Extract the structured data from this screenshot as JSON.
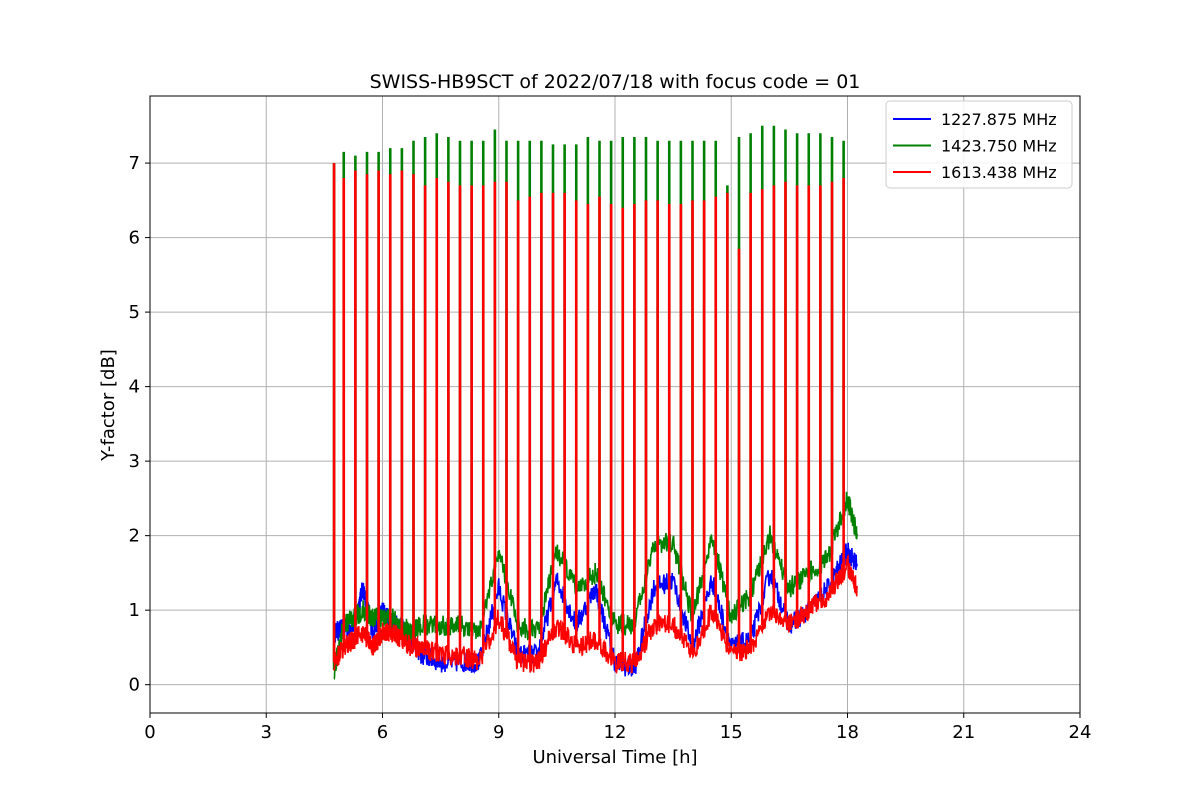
{
  "chart_data": {
    "type": "line",
    "title": "SWISS-HB9SCT of 2022/07/18 with focus code = 01",
    "xlabel": "Universal Time [h]",
    "ylabel": "Y-factor [dB]",
    "xlim": [
      0,
      24
    ],
    "ylim": [
      -0.38,
      7.9
    ],
    "xticks": [
      0,
      3,
      6,
      9,
      12,
      15,
      18,
      21,
      24
    ],
    "yticks": [
      0,
      1,
      2,
      3,
      4,
      5,
      6,
      7
    ],
    "grid": true,
    "legend_position": "top-right",
    "series": [
      {
        "name": "1227.875 MHz",
        "color": "#0000ff",
        "x": [
          4.75,
          5.0,
          5.25,
          5.5,
          5.75,
          6.0,
          6.25,
          6.5,
          6.75,
          7.0,
          7.5,
          8.0,
          8.5,
          9.0,
          9.5,
          10.0,
          10.5,
          11.0,
          11.5,
          12.0,
          12.5,
          13.0,
          13.5,
          14.0,
          14.5,
          15.0,
          15.5,
          16.0,
          16.5,
          17.0,
          17.5,
          18.0,
          18.25
        ],
        "y": [
          0.7,
          0.75,
          0.8,
          1.3,
          0.7,
          1.0,
          0.8,
          0.8,
          0.6,
          0.4,
          0.3,
          0.3,
          0.3,
          1.3,
          0.4,
          0.4,
          1.4,
          0.8,
          1.3,
          0.3,
          0.2,
          1.3,
          1.4,
          0.5,
          1.4,
          0.5,
          0.6,
          1.5,
          0.8,
          1.0,
          1.3,
          1.8,
          1.6
        ]
      },
      {
        "name": "1423.750 MHz",
        "color": "#008000",
        "x": [
          4.75,
          5.0,
          5.25,
          5.5,
          5.75,
          6.0,
          6.25,
          6.5,
          6.75,
          7.0,
          7.5,
          8.0,
          8.5,
          9.0,
          9.5,
          10.0,
          10.5,
          11.0,
          11.5,
          12.0,
          12.5,
          13.0,
          13.5,
          14.0,
          14.5,
          15.0,
          15.5,
          16.0,
          16.5,
          17.0,
          17.5,
          18.0,
          18.25
        ],
        "y": [
          0.2,
          0.8,
          0.9,
          1.0,
          0.9,
          0.9,
          0.9,
          0.8,
          0.7,
          0.8,
          0.8,
          0.8,
          0.7,
          1.8,
          0.8,
          0.7,
          1.8,
          1.3,
          1.5,
          0.8,
          0.8,
          1.9,
          1.9,
          0.9,
          2.0,
          0.9,
          1.2,
          2.0,
          1.3,
          1.5,
          1.7,
          2.5,
          2.0
        ],
        "peaks_x": [
          4.75,
          5.0,
          5.3,
          5.6,
          5.9,
          6.2,
          6.5,
          6.8,
          7.1,
          7.4,
          7.7,
          8.0,
          8.3,
          8.6,
          8.9,
          9.2,
          9.5,
          9.8,
          10.1,
          10.4,
          10.7,
          11.0,
          11.3,
          11.6,
          11.9,
          12.2,
          12.5,
          12.8,
          13.1,
          13.4,
          13.7,
          14.0,
          14.3,
          14.6,
          14.9,
          15.2,
          15.5,
          15.8,
          16.1,
          16.4,
          16.7,
          17.0,
          17.3,
          17.6,
          17.9
        ],
        "peaks_y": [
          7.0,
          7.15,
          7.1,
          7.15,
          7.15,
          7.2,
          7.2,
          7.3,
          7.35,
          7.4,
          7.35,
          7.3,
          7.3,
          7.3,
          7.45,
          7.3,
          7.3,
          7.3,
          7.3,
          7.25,
          7.25,
          7.25,
          7.35,
          7.3,
          7.3,
          7.35,
          7.35,
          7.35,
          7.3,
          7.3,
          7.3,
          7.3,
          7.3,
          7.3,
          6.7,
          7.35,
          7.4,
          7.5,
          7.5,
          7.45,
          7.4,
          7.4,
          7.4,
          7.35,
          7.3
        ]
      },
      {
        "name": "1613.438 MHz",
        "color": "#ff0000",
        "x": [
          4.75,
          5.0,
          5.25,
          5.5,
          5.75,
          6.0,
          6.25,
          6.5,
          6.75,
          7.0,
          7.5,
          8.0,
          8.5,
          9.0,
          9.5,
          10.0,
          10.5,
          11.0,
          11.5,
          12.0,
          12.5,
          13.0,
          13.5,
          14.0,
          14.5,
          15.0,
          15.5,
          16.0,
          16.5,
          17.0,
          17.5,
          18.0,
          18.25
        ],
        "y": [
          0.3,
          0.5,
          0.6,
          0.7,
          0.5,
          0.7,
          0.7,
          0.6,
          0.5,
          0.5,
          0.4,
          0.4,
          0.3,
          0.9,
          0.3,
          0.3,
          0.8,
          0.5,
          0.6,
          0.3,
          0.3,
          0.8,
          0.8,
          0.4,
          1.0,
          0.4,
          0.5,
          1.0,
          0.8,
          1.0,
          1.2,
          1.6,
          1.3
        ],
        "peaks_x": [
          4.75,
          5.0,
          5.3,
          5.6,
          5.9,
          6.2,
          6.5,
          6.8,
          7.1,
          7.4,
          7.7,
          8.0,
          8.3,
          8.6,
          8.9,
          9.2,
          9.5,
          9.8,
          10.1,
          10.4,
          10.7,
          11.0,
          11.3,
          11.6,
          11.9,
          12.2,
          12.5,
          12.8,
          13.1,
          13.4,
          13.7,
          14.0,
          14.3,
          14.6,
          14.9,
          15.2,
          15.5,
          15.8,
          16.1,
          16.4,
          16.7,
          17.0,
          17.3,
          17.6,
          17.9
        ],
        "peaks_y": [
          7.0,
          6.8,
          6.9,
          6.85,
          6.9,
          6.85,
          6.9,
          6.85,
          6.7,
          6.8,
          6.75,
          6.7,
          6.7,
          6.7,
          6.75,
          6.75,
          6.5,
          6.55,
          6.6,
          6.6,
          6.6,
          6.5,
          6.45,
          6.55,
          6.45,
          6.4,
          6.45,
          6.5,
          6.5,
          6.45,
          6.45,
          6.5,
          6.5,
          6.55,
          6.6,
          5.85,
          6.6,
          6.65,
          6.7,
          6.75,
          6.7,
          6.7,
          6.7,
          6.75,
          6.8
        ]
      }
    ]
  }
}
